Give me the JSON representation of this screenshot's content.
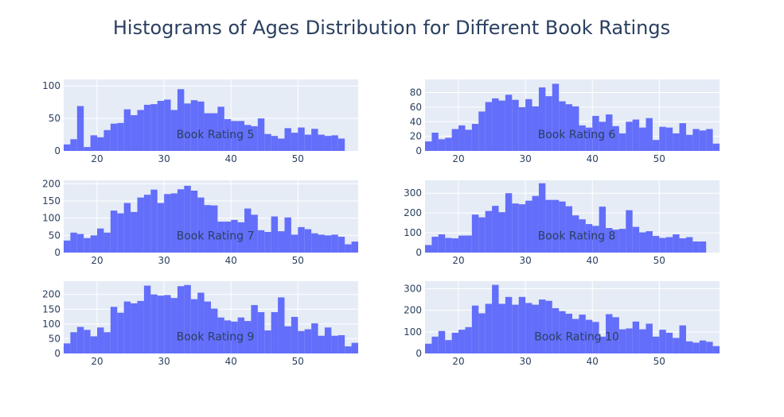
{
  "title": "Histograms of Ages Distribution for Different Book Ratings",
  "colors": {
    "bar": "#636efa",
    "plot_bg": "#e5ecf6",
    "grid": "#ffffff",
    "text": "#2a3f5f"
  },
  "chart_data": [
    {
      "type": "bar",
      "annotation": "Book Rating 5",
      "x_start": 15,
      "bin_width": 1,
      "xlim": [
        15,
        59
      ],
      "ylim": [
        0,
        110
      ],
      "xticks": [
        20,
        30,
        40,
        50
      ],
      "yticks": [
        0,
        50,
        100
      ],
      "values": [
        10,
        18,
        69,
        6,
        24,
        21,
        32,
        42,
        43,
        64,
        55,
        63,
        71,
        72,
        77,
        79,
        63,
        95,
        73,
        78,
        76,
        58,
        58,
        68,
        49,
        46,
        46,
        40,
        38,
        50,
        26,
        23,
        19,
        35,
        28,
        36,
        25,
        34,
        25,
        23,
        24,
        19
      ]
    },
    {
      "type": "bar",
      "annotation": "Book Rating 6",
      "x_start": 15,
      "bin_width": 1,
      "xlim": [
        15,
        59
      ],
      "ylim": [
        0,
        98
      ],
      "xticks": [
        20,
        30,
        40,
        50
      ],
      "yticks": [
        0,
        20,
        40,
        60,
        80
      ],
      "values": [
        13,
        25,
        16,
        18,
        30,
        35,
        29,
        37,
        54,
        67,
        72,
        69,
        77,
        70,
        60,
        71,
        61,
        87,
        75,
        92,
        68,
        64,
        61,
        35,
        32,
        48,
        40,
        50,
        34,
        24,
        40,
        43,
        32,
        45,
        15,
        33,
        32,
        24,
        38,
        22,
        30,
        28,
        30,
        10
      ]
    },
    {
      "type": "bar",
      "annotation": "Book Rating 7",
      "x_start": 15,
      "bin_width": 1,
      "xlim": [
        15,
        59
      ],
      "ylim": [
        0,
        210
      ],
      "xticks": [
        20,
        30,
        40,
        50
      ],
      "yticks": [
        0,
        50,
        100,
        150,
        200
      ],
      "values": [
        35,
        58,
        54,
        42,
        50,
        70,
        58,
        122,
        114,
        144,
        118,
        160,
        168,
        183,
        144,
        170,
        172,
        184,
        194,
        180,
        160,
        138,
        137,
        90,
        90,
        95,
        88,
        128,
        110,
        65,
        60,
        105,
        62,
        102,
        52,
        74,
        68,
        56,
        52,
        50,
        52,
        46,
        24,
        32
      ]
    },
    {
      "type": "bar",
      "annotation": "Book Rating 8",
      "x_start": 15,
      "bin_width": 1,
      "xlim": [
        15,
        59
      ],
      "ylim": [
        0,
        365
      ],
      "xticks": [
        20,
        30,
        40,
        50
      ],
      "yticks": [
        0,
        100,
        200,
        300
      ],
      "values": [
        38,
        80,
        92,
        74,
        72,
        86,
        86,
        192,
        178,
        210,
        236,
        204,
        300,
        248,
        244,
        262,
        286,
        350,
        266,
        266,
        258,
        234,
        188,
        168,
        144,
        135,
        232,
        124,
        116,
        120,
        214,
        130,
        102,
        108,
        84,
        74,
        78,
        92,
        72,
        78,
        56,
        56
      ]
    },
    {
      "type": "bar",
      "annotation": "Book Rating 9",
      "x_start": 15,
      "bin_width": 1,
      "xlim": [
        15,
        59
      ],
      "ylim": [
        0,
        245
      ],
      "xticks": [
        20,
        30,
        40,
        50
      ],
      "yticks": [
        0,
        50,
        100,
        150,
        200
      ],
      "values": [
        34,
        72,
        90,
        80,
        58,
        88,
        72,
        158,
        138,
        176,
        170,
        178,
        230,
        200,
        196,
        198,
        188,
        228,
        232,
        184,
        206,
        176,
        152,
        122,
        112,
        108,
        122,
        110,
        164,
        140,
        78,
        140,
        190,
        92,
        124,
        76,
        82,
        102,
        60,
        88,
        60,
        62,
        24,
        36
      ]
    },
    {
      "type": "bar",
      "annotation": "Book Rating 10",
      "x_start": 15,
      "bin_width": 1,
      "xlim": [
        15,
        59
      ],
      "ylim": [
        0,
        335
      ],
      "xticks": [
        20,
        30,
        40,
        50
      ],
      "yticks": [
        0,
        100,
        200,
        300
      ],
      "values": [
        45,
        78,
        104,
        62,
        96,
        110,
        122,
        222,
        186,
        230,
        318,
        230,
        262,
        226,
        262,
        234,
        226,
        250,
        244,
        210,
        196,
        184,
        160,
        180,
        156,
        146,
        78,
        182,
        168,
        112,
        116,
        148,
        112,
        138,
        78,
        110,
        96,
        72,
        130,
        56,
        50,
        60,
        54,
        34
      ]
    }
  ]
}
